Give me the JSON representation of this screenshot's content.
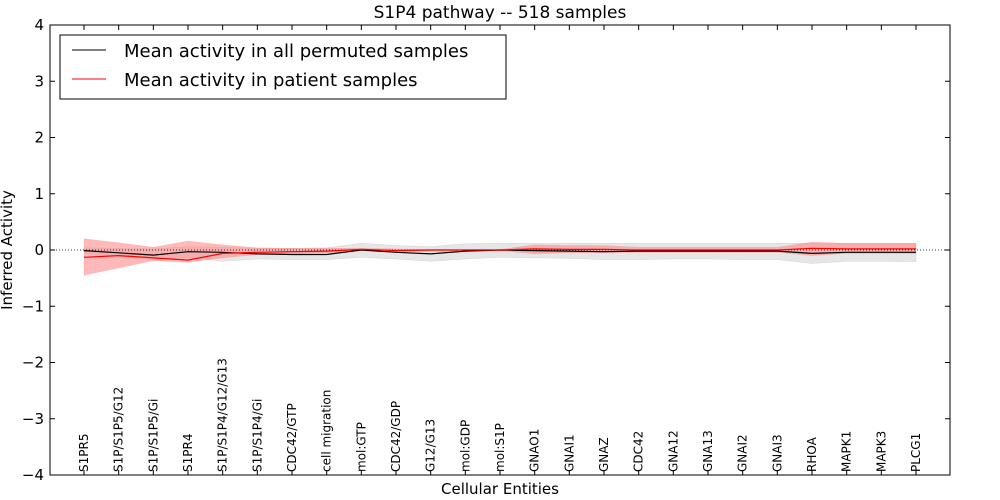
{
  "chart_data": {
    "type": "line",
    "title": "S1P4 pathway -- 518 samples",
    "xlabel": "Cellular Entities",
    "ylabel": "Inferred Activity",
    "ylim": [
      -4,
      4
    ],
    "yticks": [
      -4,
      -3,
      -2,
      -1,
      0,
      1,
      2,
      3,
      4
    ],
    "ytick_labels": [
      "−4",
      "−3",
      "−2",
      "−1",
      "0",
      "1",
      "2",
      "3",
      "4"
    ],
    "categories": [
      "S1PR5",
      "S1P/S1P5/G12",
      "S1P/S1P5/Gi",
      "S1PR4",
      "S1P/S1P4/G12/G13",
      "S1P/S1P4/Gi",
      "CDC42/GTP",
      "cell migration",
      "mol:GTP",
      "CDC42/GDP",
      "G12/G13",
      "mol:GDP",
      "mol:S1P",
      "GNAO1",
      "GNAI1",
      "GNAZ",
      "CDC42",
      "GNA12",
      "GNA13",
      "GNAI2",
      "GNAI3",
      "RHOA",
      "MAPK1",
      "MAPK3",
      "PLCG1"
    ],
    "legend_position": "top-left",
    "series": [
      {
        "name": "Mean activity in all permuted samples",
        "color": "#000000",
        "band_color": "#c8c8c8",
        "values": [
          -0.01,
          -0.05,
          -0.09,
          -0.03,
          -0.04,
          -0.07,
          -0.08,
          -0.08,
          0.0,
          -0.04,
          -0.07,
          -0.02,
          0.0,
          -0.01,
          -0.02,
          -0.03,
          -0.02,
          -0.02,
          -0.02,
          -0.02,
          -0.02,
          -0.06,
          -0.04,
          -0.04,
          -0.04
        ],
        "upper": [
          0.04,
          0.03,
          0.02,
          0.06,
          0.05,
          0.03,
          0.03,
          0.04,
          0.12,
          0.08,
          0.06,
          0.11,
          0.12,
          0.12,
          0.12,
          0.12,
          0.12,
          0.12,
          0.12,
          0.12,
          0.12,
          0.12,
          0.12,
          0.12,
          0.12
        ],
        "lower": [
          -0.06,
          -0.11,
          -0.18,
          -0.13,
          -0.2,
          -0.16,
          -0.17,
          -0.17,
          -0.13,
          -0.16,
          -0.2,
          -0.16,
          -0.13,
          -0.14,
          -0.15,
          -0.17,
          -0.17,
          -0.16,
          -0.16,
          -0.17,
          -0.17,
          -0.24,
          -0.2,
          -0.2,
          -0.21
        ]
      },
      {
        "name": "Mean activity in patient samples",
        "color": "#ff0000",
        "band_color": "#ff8080",
        "values": [
          -0.13,
          -0.1,
          -0.14,
          -0.18,
          -0.06,
          -0.04,
          -0.03,
          -0.02,
          0.01,
          -0.01,
          0.0,
          0.0,
          0.0,
          0.02,
          0.01,
          0.01,
          0.0,
          0.0,
          0.0,
          0.0,
          0.0,
          0.03,
          0.02,
          0.02,
          0.02
        ],
        "upper": [
          0.2,
          0.13,
          0.05,
          0.16,
          0.09,
          0.04,
          0.03,
          0.03,
          0.03,
          0.02,
          0.01,
          0.01,
          0.01,
          0.09,
          0.08,
          0.08,
          0.05,
          0.05,
          0.05,
          0.05,
          0.05,
          0.14,
          0.12,
          0.12,
          0.12
        ],
        "lower": [
          -0.45,
          -0.32,
          -0.19,
          -0.22,
          -0.14,
          -0.08,
          -0.06,
          -0.05,
          -0.01,
          -0.03,
          -0.02,
          -0.02,
          -0.01,
          -0.07,
          -0.05,
          -0.05,
          -0.04,
          -0.04,
          -0.04,
          -0.04,
          -0.04,
          -0.1,
          -0.06,
          -0.06,
          -0.06
        ]
      }
    ]
  }
}
